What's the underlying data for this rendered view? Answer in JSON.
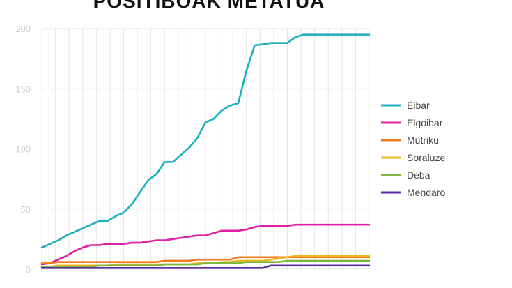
{
  "chart_data": {
    "type": "line",
    "title": "POSITIBOAK METATUA",
    "xlabel": "",
    "ylabel": "",
    "ylim": [
      0,
      200
    ],
    "yticks": [
      0,
      50,
      100,
      150,
      200
    ],
    "grid": true,
    "legend_position": "right",
    "x": [
      0,
      1,
      2,
      3,
      4,
      5,
      6,
      7,
      8,
      9,
      10,
      11,
      12,
      13,
      14,
      15,
      16,
      17,
      18,
      19,
      20,
      21,
      22,
      23,
      24,
      25,
      26,
      27,
      28,
      29,
      30,
      31,
      32,
      33,
      34,
      35,
      36,
      37,
      38,
      39,
      40
    ],
    "series": [
      {
        "name": "Eibar",
        "color": "#1aaec1",
        "values": [
          18,
          21,
          24,
          28,
          31,
          34,
          37,
          40,
          40,
          44,
          47,
          54,
          64,
          74,
          79,
          89,
          89,
          95,
          101,
          109,
          122,
          125,
          132,
          136,
          138,
          165,
          186,
          187,
          188,
          188,
          188,
          193,
          195,
          195,
          195,
          195,
          195,
          195,
          195,
          195,
          195
        ]
      },
      {
        "name": "Elgoibar",
        "color": "#e01fa4",
        "values": [
          4,
          5,
          8,
          11,
          15,
          18,
          20,
          20,
          21,
          21,
          21,
          22,
          22,
          23,
          24,
          24,
          25,
          26,
          27,
          28,
          28,
          30,
          32,
          32,
          32,
          33,
          35,
          36,
          36,
          36,
          36,
          37,
          37,
          37,
          37,
          37,
          37,
          37,
          37,
          37,
          37
        ]
      },
      {
        "name": "Mutriku",
        "color": "#f07a1c",
        "values": [
          5,
          5,
          6,
          6,
          6,
          6,
          6,
          6,
          6,
          6,
          6,
          6,
          6,
          6,
          6,
          7,
          7,
          7,
          7,
          8,
          8,
          8,
          8,
          8,
          10,
          10,
          10,
          10,
          10,
          10,
          10,
          10,
          10,
          10,
          10,
          10,
          10,
          10,
          10,
          10,
          10
        ]
      },
      {
        "name": "Soraluze",
        "color": "#f0b41c",
        "values": [
          2,
          2,
          3,
          3,
          3,
          3,
          3,
          3,
          3,
          4,
          4,
          4,
          4,
          4,
          4,
          4,
          4,
          4,
          4,
          5,
          5,
          5,
          6,
          6,
          7,
          7,
          7,
          7,
          8,
          9,
          10,
          11,
          11,
          11,
          11,
          11,
          11,
          11,
          11,
          11,
          11
        ]
      },
      {
        "name": "Deba",
        "color": "#7ab83e",
        "values": [
          2,
          2,
          2,
          2,
          2,
          2,
          2,
          3,
          3,
          3,
          3,
          3,
          3,
          3,
          3,
          4,
          4,
          4,
          4,
          4,
          5,
          5,
          5,
          5,
          5,
          6,
          6,
          6,
          6,
          6,
          7,
          7,
          7,
          7,
          7,
          7,
          7,
          7,
          7,
          7,
          7
        ]
      },
      {
        "name": "Mendaro",
        "color": "#5b2f9e",
        "values": [
          1,
          1,
          1,
          1,
          1,
          1,
          1,
          1,
          1,
          1,
          1,
          1,
          1,
          1,
          1,
          1,
          1,
          1,
          1,
          1,
          1,
          1,
          1,
          1,
          1,
          1,
          1,
          1,
          3,
          3,
          3,
          3,
          3,
          3,
          3,
          3,
          3,
          3,
          3,
          3,
          3
        ]
      }
    ]
  }
}
